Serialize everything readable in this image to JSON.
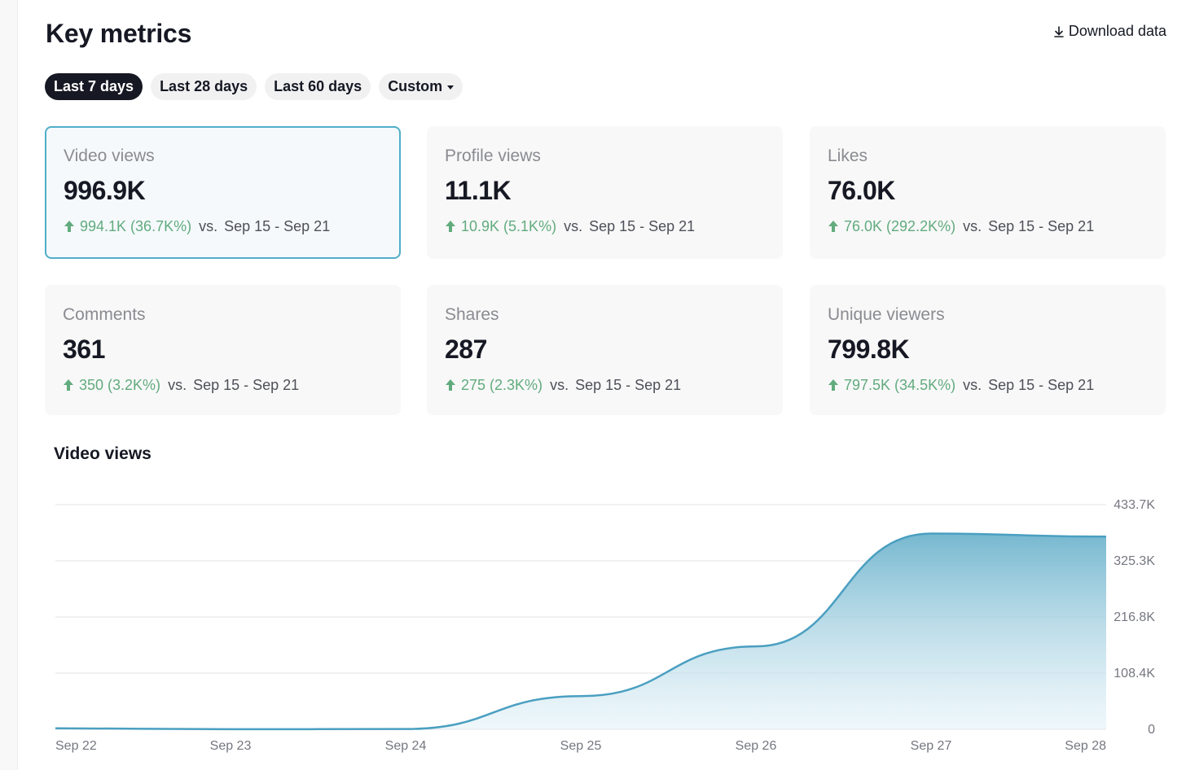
{
  "header": {
    "title": "Key metrics",
    "download_label": "Download data"
  },
  "tabs": [
    {
      "label": "Last 7 days",
      "active": true
    },
    {
      "label": "Last 28 days",
      "active": false
    },
    {
      "label": "Last 60 days",
      "active": false
    },
    {
      "label": "Custom",
      "active": false
    }
  ],
  "cards": [
    {
      "label": "Video views",
      "value": "996.9K",
      "delta": "994.1K (36.7K%)",
      "vs": "vs.",
      "range": "Sep 15 - Sep 21",
      "selected": true
    },
    {
      "label": "Profile views",
      "value": "11.1K",
      "delta": "10.9K (5.1K%)",
      "vs": "vs.",
      "range": "Sep 15 - Sep 21",
      "selected": false
    },
    {
      "label": "Likes",
      "value": "76.0K",
      "delta": "76.0K (292.2K%)",
      "vs": "vs.",
      "range": "Sep 15 - Sep 21",
      "selected": false
    },
    {
      "label": "Comments",
      "value": "361",
      "delta": "350 (3.2K%)",
      "vs": "vs.",
      "range": "Sep 15 - Sep 21",
      "selected": false
    },
    {
      "label": "Shares",
      "value": "287",
      "delta": "275 (2.3K%)",
      "vs": "vs.",
      "range": "Sep 15 - Sep 21",
      "selected": false
    },
    {
      "label": "Unique viewers",
      "value": "799.8K",
      "delta": "797.5K (34.5K%)",
      "vs": "vs.",
      "range": "Sep 15 - Sep 21",
      "selected": false
    }
  ],
  "colors": {
    "accent": "#4faec9",
    "positive": "#62ab7e",
    "line": "#4a9fc1"
  },
  "chart_data": {
    "type": "area",
    "title": "Video views",
    "x": [
      "Sep 22",
      "Sep 23",
      "Sep 24",
      "Sep 25",
      "Sep 26",
      "Sep 27",
      "Sep 28"
    ],
    "values": [
      2000,
      100,
      500,
      64000,
      160000,
      378000,
      372000
    ],
    "yticks": [
      {
        "value": 0,
        "label": "0"
      },
      {
        "value": 108400,
        "label": "108.4K"
      },
      {
        "value": 216800,
        "label": "216.8K"
      },
      {
        "value": 325300,
        "label": "325.3K"
      },
      {
        "value": 433700,
        "label": "433.7K"
      }
    ],
    "ylim": [
      0,
      433700
    ],
    "grid": true
  }
}
